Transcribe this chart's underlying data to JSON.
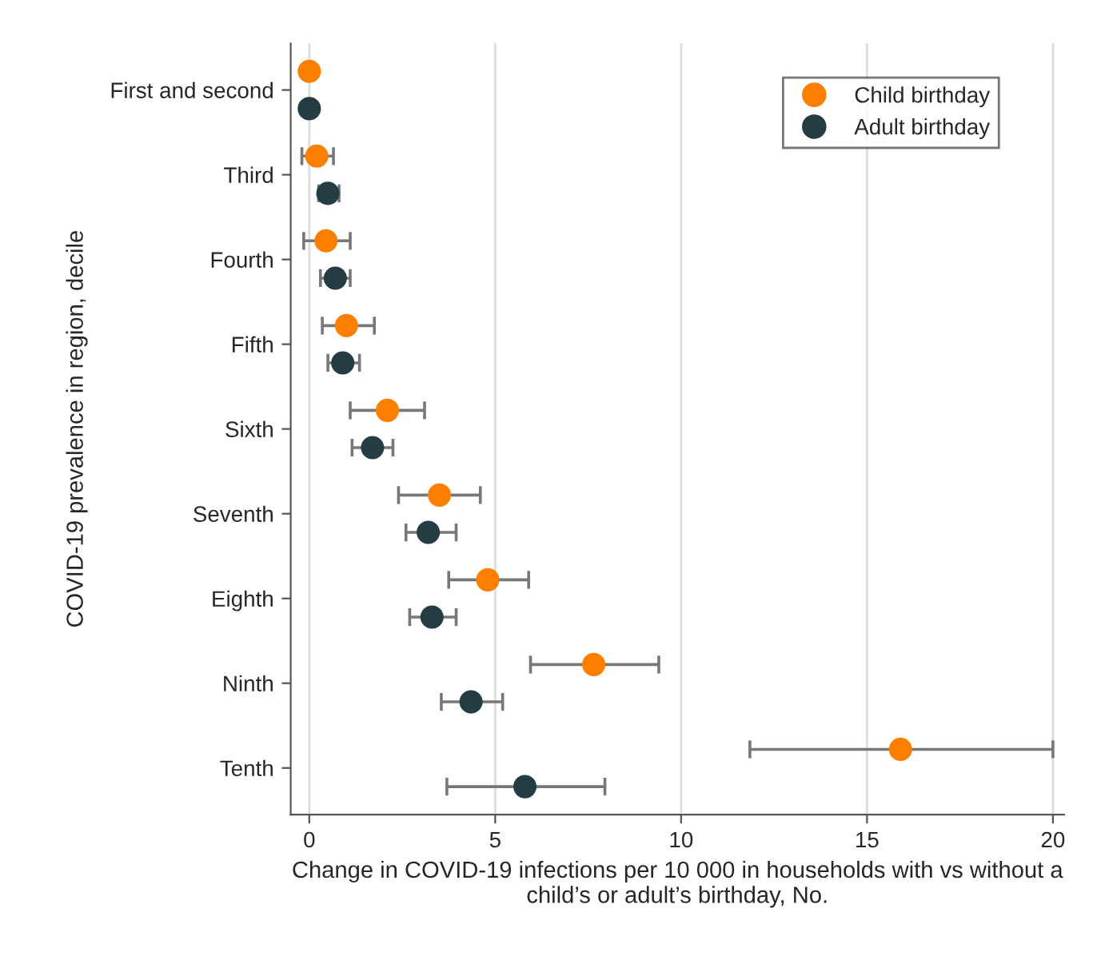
{
  "chart_data": {
    "type": "scatter",
    "orientation": "horizontal",
    "xlabel": "Change in COVID-19 infections per 10 000 in households with vs without a child’s or adult’s birthday, No.",
    "ylabel": "COVID-19 prevalence in region, decile",
    "categories": [
      "First and second",
      "Third",
      "Fourth",
      "Fifth",
      "Sixth",
      "Seventh",
      "Eighth",
      "Ninth",
      "Tenth"
    ],
    "series": [
      {
        "name": "Child birthday",
        "color": "#fd7f00",
        "values": [
          0,
          0.2,
          0.45,
          1.0,
          2.1,
          3.5,
          4.8,
          7.65,
          15.9
        ],
        "errors": [
          null,
          [
            -0.2,
            0.65
          ],
          [
            -0.15,
            1.1
          ],
          [
            0.35,
            1.75
          ],
          [
            1.1,
            3.1
          ],
          [
            2.4,
            4.6
          ],
          [
            3.75,
            5.9
          ],
          [
            5.95,
            9.4
          ],
          [
            11.85,
            20
          ]
        ]
      },
      {
        "name": "Adult birthday",
        "color": "#243d45",
        "values": [
          0,
          0.5,
          0.7,
          0.9,
          1.7,
          3.2,
          3.3,
          4.35,
          5.8
        ],
        "errors": [
          null,
          [
            0.25,
            0.8
          ],
          [
            0.3,
            1.1
          ],
          [
            0.5,
            1.35
          ],
          [
            1.15,
            2.25
          ],
          [
            2.6,
            3.95
          ],
          [
            2.7,
            3.95
          ],
          [
            3.55,
            5.2
          ],
          [
            3.7,
            7.95
          ]
        ]
      }
    ],
    "xlim": [
      -0.5,
      20.3
    ],
    "xticks": [
      0,
      5,
      10,
      15,
      20
    ],
    "grid": "x",
    "legend": "top right",
    "marker": "circle"
  }
}
